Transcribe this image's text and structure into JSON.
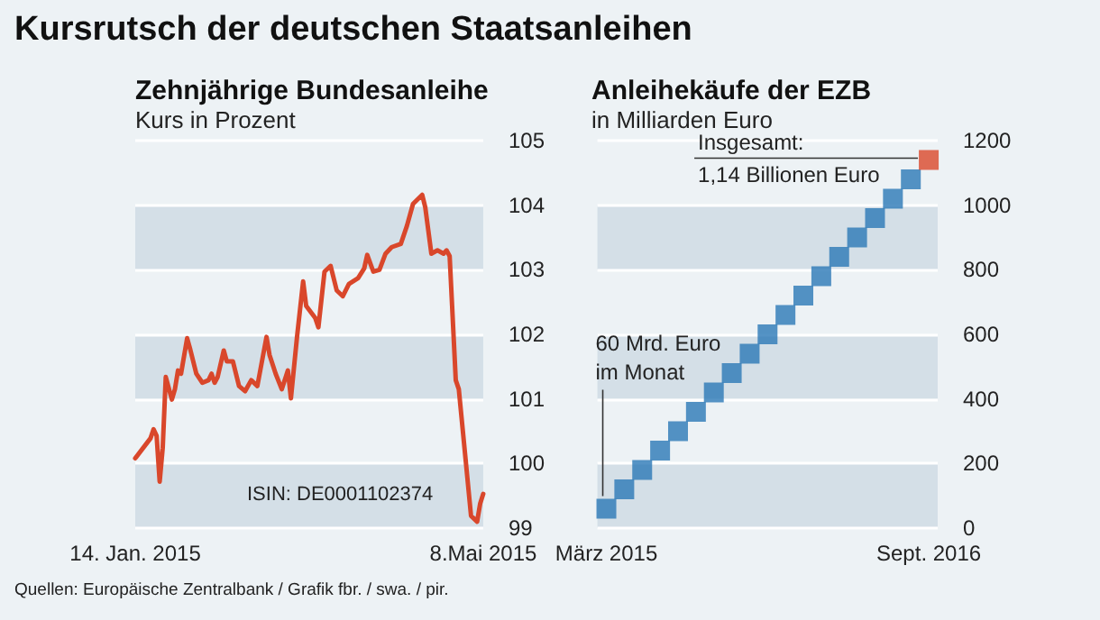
{
  "chart_data": [
    {
      "type": "line",
      "title": "Zehnjährige Bundesanleihe",
      "ylabel": "Kurs in Prozent",
      "annotations": [
        "Kursrutsch der deutschen Staatsanleihen",
        "ISIN: DE0001102374"
      ],
      "x": [
        "2015-01-14",
        "2015-01-19",
        "2015-01-20",
        "2015-01-21",
        "2015-01-22",
        "2015-01-23",
        "2015-01-24",
        "2015-01-26",
        "2015-01-27",
        "2015-01-28",
        "2015-01-29",
        "2015-01-31",
        "2015-02-01",
        "2015-02-03",
        "2015-02-05",
        "2015-02-07",
        "2015-02-08",
        "2015-02-09",
        "2015-02-10",
        "2015-02-12",
        "2015-02-13",
        "2015-02-15",
        "2015-02-17",
        "2015-02-19",
        "2015-02-21",
        "2015-02-23",
        "2015-02-26",
        "2015-02-27",
        "2015-03-01",
        "2015-03-03",
        "2015-03-05",
        "2015-03-06",
        "2015-03-08",
        "2015-03-10",
        "2015-03-11",
        "2015-03-14",
        "2015-03-15",
        "2015-03-17",
        "2015-03-19",
        "2015-03-21",
        "2015-03-23",
        "2015-03-25",
        "2015-03-28",
        "2015-03-30",
        "2015-03-31",
        "2015-04-02",
        "2015-04-04",
        "2015-04-06",
        "2015-04-08",
        "2015-04-11",
        "2015-04-13",
        "2015-04-15",
        "2015-04-18",
        "2015-04-19",
        "2015-04-21",
        "2015-04-23",
        "2015-04-25",
        "2015-04-26",
        "2015-04-27",
        "2015-04-29",
        "2015-04-30",
        "2015-05-04",
        "2015-05-06",
        "2015-05-07",
        "2015-05-08"
      ],
      "series": [
        {
          "color": "#d9472b",
          "values": [
            100.08,
            100.39,
            100.53,
            100.43,
            99.72,
            100.24,
            101.34,
            100.99,
            101.15,
            101.44,
            101.39,
            101.94,
            101.77,
            101.39,
            101.25,
            101.29,
            101.39,
            101.25,
            101.34,
            101.75,
            101.58,
            101.58,
            101.2,
            101.12,
            101.29,
            101.2,
            101.96,
            101.68,
            101.39,
            101.15,
            101.44,
            101.01,
            101.96,
            102.82,
            102.44,
            102.25,
            102.11,
            102.97,
            103.06,
            102.68,
            102.59,
            102.78,
            102.87,
            103.02,
            103.23,
            102.97,
            103.0,
            103.25,
            103.35,
            103.4,
            103.68,
            104.02,
            104.16,
            103.97,
            103.25,
            103.3,
            103.25,
            103.3,
            103.21,
            101.29,
            101.15,
            99.19,
            99.1,
            99.38,
            99.53
          ]
        }
      ],
      "xlim": [
        "2015-01-14",
        "2015-05-08"
      ],
      "xticks": [
        {
          "value": "2015-01-14",
          "label": "14. Jan. 2015"
        },
        {
          "value": "2015-05-08",
          "label": "8.Mai 2015"
        }
      ],
      "ylim": [
        99,
        105
      ],
      "yticks": [
        99,
        100,
        101,
        102,
        103,
        104,
        105
      ],
      "grid": "y",
      "marker": "none",
      "line_style": "solid"
    },
    {
      "type": "scatter",
      "title": "Anleihekäufe der EZB",
      "ylabel": "in Milliarden Euro",
      "annotations": [
        {
          "text": "60 Mrd. Euro im Monat",
          "x": "März 2015",
          "y": 60
        },
        {
          "text": "Insgesamt: 1,14 Billionen Euro",
          "x": "Sept. 2016",
          "y": 1140
        },
        "Quellen: Europäische Zentralbank / Grafik fbr. / swa. / pir."
      ],
      "categories": [
        "März 2015",
        null,
        null,
        null,
        null,
        null,
        null,
        null,
        null,
        null,
        null,
        null,
        null,
        null,
        null,
        null,
        null,
        null,
        "Sept. 2016"
      ],
      "series": [
        {
          "colors": [
            "#2a78b6",
            "#2a78b6",
            "#2a78b6",
            "#2a78b6",
            "#2a78b6",
            "#2a78b6",
            "#2a78b6",
            "#2a78b6",
            "#2a78b6",
            "#2a78b6",
            "#2a78b6",
            "#2a78b6",
            "#2a78b6",
            "#2a78b6",
            "#2a78b6",
            "#2a78b6",
            "#2a78b6",
            "#2a78b6",
            "#d9472b"
          ],
          "values": [
            60,
            120,
            180,
            240,
            300,
            360,
            420,
            480,
            540,
            600,
            660,
            720,
            780,
            840,
            900,
            960,
            1020,
            1080,
            1140
          ]
        }
      ],
      "ylim": [
        0,
        1200
      ],
      "yticks": [
        0,
        200,
        400,
        600,
        800,
        1000,
        1200
      ],
      "grid": "y",
      "marker": "square"
    }
  ]
}
